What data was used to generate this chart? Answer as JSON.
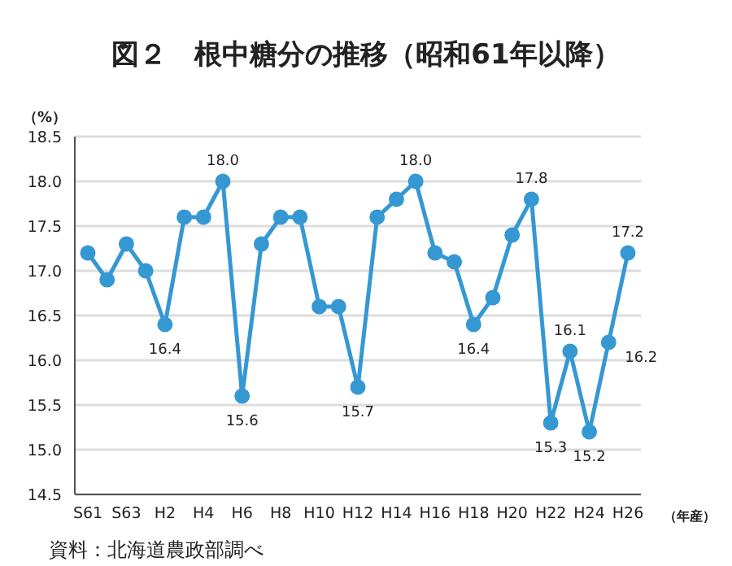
{
  "chart_data": {
    "type": "line",
    "title": "図２　根中糖分の推移（昭和61年以降）",
    "ylabel": "（%）",
    "xlabel": "（年産）",
    "annotations": [
      "資料：北海道農政部調べ"
    ],
    "categories": [
      "S61",
      null,
      "S63",
      null,
      "H2",
      null,
      "H4",
      null,
      "H6",
      null,
      "H8",
      null,
      "H10",
      null,
      "H12",
      null,
      "H14",
      null,
      "H16",
      null,
      "H18",
      null,
      "H20",
      null,
      "H22",
      null,
      "H24",
      null,
      "H26"
    ],
    "series": [
      {
        "color": "#3598d3",
        "values": [
          17.2,
          16.9,
          17.3,
          17.0,
          16.4,
          17.6,
          17.6,
          18.0,
          15.6,
          17.3,
          17.6,
          17.6,
          16.6,
          16.6,
          15.7,
          17.6,
          17.8,
          18.0,
          17.2,
          17.1,
          16.4,
          16.7,
          17.4,
          17.8,
          15.3,
          16.1,
          15.2,
          16.2,
          17.2
        ],
        "value_labels": [
          null,
          null,
          null,
          null,
          "16.4",
          null,
          null,
          "18.0",
          "15.6",
          null,
          null,
          null,
          null,
          null,
          "15.7",
          null,
          null,
          "18.0",
          null,
          null,
          "16.4",
          null,
          null,
          "17.8",
          "15.3",
          "16.1",
          "15.2",
          "16.2",
          "17.2"
        ]
      }
    ],
    "ylim": [
      14.5,
      18.5
    ],
    "yticks": [
      {
        "value": 14.5,
        "label": "14.5"
      },
      {
        "value": 15,
        "label": "15.0"
      },
      {
        "value": 15.5,
        "label": "15.5"
      },
      {
        "value": 16,
        "label": "16.0"
      },
      {
        "value": 16.5,
        "label": "16.5"
      },
      {
        "value": 17,
        "label": "17.0"
      },
      {
        "value": 17.5,
        "label": "17.5"
      },
      {
        "value": 18,
        "label": "18.0"
      },
      {
        "value": 18.5,
        "label": "18.5"
      }
    ],
    "grid": "y",
    "marker": "circle",
    "line_style": "solid"
  }
}
